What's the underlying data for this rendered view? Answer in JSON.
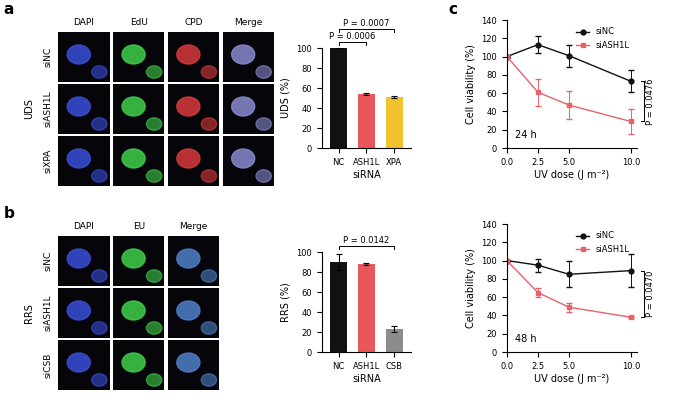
{
  "panel_labels": [
    "a",
    "b",
    "c"
  ],
  "image_panels": [
    {
      "row_group": "UDS",
      "columns": [
        "DAPI",
        "EdU",
        "CPD",
        "Merge"
      ],
      "rows": [
        "siNC",
        "siASH1L",
        "siXPA"
      ]
    },
    {
      "row_group": "RRS",
      "columns": [
        "DAPI",
        "EU",
        "Merge"
      ],
      "rows": [
        "siNC",
        "siASH1L",
        "siCSB"
      ]
    }
  ],
  "chart_data": [
    {
      "type": "bar",
      "categories": [
        "NC",
        "ASH1L",
        "XPA"
      ],
      "values": [
        100,
        54,
        51
      ],
      "errors": [
        0,
        1,
        1
      ],
      "colors": [
        "#111111",
        "#e8585a",
        "#f2c12e"
      ],
      "x_label": "siRNA",
      "y_label": "UDS (%)",
      "ylim": [
        0,
        100
      ],
      "yticks": [
        0,
        20,
        40,
        60,
        80,
        100
      ],
      "comparisons": [
        {
          "from": "NC",
          "to": "ASH1L",
          "label": "P = 0.0006"
        },
        {
          "from": "NC",
          "to": "XPA",
          "label": "P = 0.0007"
        }
      ]
    },
    {
      "type": "bar",
      "categories": [
        "NC",
        "ASH1L",
        "CSB"
      ],
      "values": [
        90,
        88,
        23
      ],
      "errors": [
        8,
        1,
        3
      ],
      "colors": [
        "#111111",
        "#e8585a",
        "#8c8c8c"
      ],
      "x_label": "siRNA",
      "y_label": "RRS (%)",
      "ylim": [
        0,
        100
      ],
      "yticks": [
        0,
        20,
        40,
        60,
        80,
        100
      ],
      "comparisons": [
        {
          "from": "NC",
          "to": "CSB",
          "label": "P = 0.0142"
        }
      ]
    },
    {
      "type": "line",
      "annotation": "24 h",
      "x_label": "UV dose (J m⁻²)",
      "y_label": "Cell viability (%)",
      "x": [
        0,
        2.5,
        5,
        10
      ],
      "xlim": [
        0,
        10.5
      ],
      "xticks": [
        {
          "value": 0,
          "label": "0.0"
        },
        {
          "value": 2.5,
          "label": "2.5"
        },
        {
          "value": 5,
          "label": "5.0"
        },
        {
          "value": 10,
          "label": "10.0"
        }
      ],
      "ylim": [
        0,
        140
      ],
      "yticks": [
        0,
        20,
        40,
        60,
        80,
        100,
        120,
        140
      ],
      "legend": "upper right",
      "series": [
        {
          "name": "siNC",
          "color": "#111111",
          "marker": "circle",
          "values": [
            100,
            113,
            101,
            73
          ],
          "errors": [
            0,
            9,
            12,
            12
          ]
        },
        {
          "name": "siASH1L",
          "color": "#e8626a",
          "marker": "square",
          "values": [
            100,
            61,
            47,
            29
          ],
          "errors": [
            0,
            15,
            15,
            14
          ]
        }
      ],
      "comparison": "P = 0.0476"
    },
    {
      "type": "line",
      "annotation": "48 h",
      "x_label": "UV dose (J m⁻²)",
      "y_label": "Cell viability (%)",
      "x": [
        0,
        2.5,
        5,
        10
      ],
      "xlim": [
        0,
        10.5
      ],
      "xticks": [
        {
          "value": 0,
          "label": "0.0"
        },
        {
          "value": 2.5,
          "label": "2.5"
        },
        {
          "value": 5,
          "label": "5.0"
        },
        {
          "value": 10,
          "label": "10.0"
        }
      ],
      "ylim": [
        0,
        140
      ],
      "yticks": [
        0,
        20,
        40,
        60,
        80,
        100,
        120,
        140
      ],
      "legend": "upper right",
      "series": [
        {
          "name": "siNC",
          "color": "#111111",
          "marker": "circle",
          "values": [
            100,
            95,
            85,
            89
          ],
          "errors": [
            0,
            7,
            14,
            18
          ]
        },
        {
          "name": "siASH1L",
          "color": "#e8626a",
          "marker": "square",
          "values": [
            100,
            65,
            49,
            38
          ],
          "errors": [
            0,
            5,
            5,
            1
          ]
        }
      ],
      "comparison": "P = 0.0470"
    }
  ]
}
